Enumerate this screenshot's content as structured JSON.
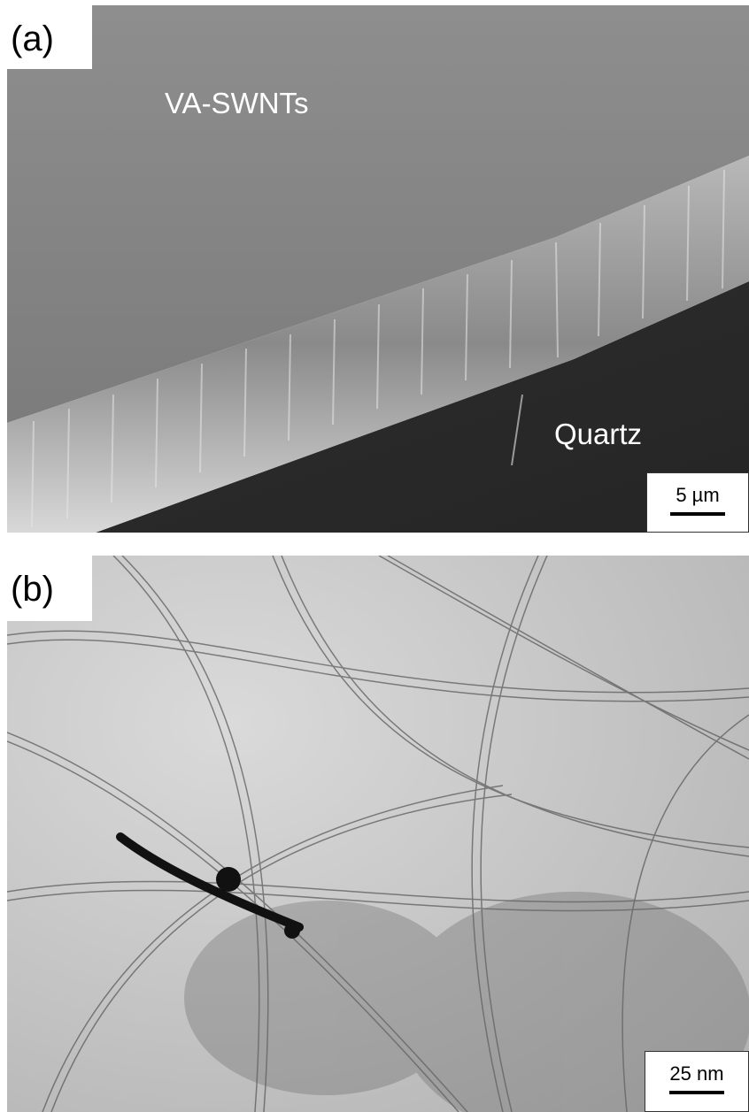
{
  "figure": {
    "panel_a": {
      "label": "(a)",
      "annotation_top": "VA-SWNTs",
      "annotation_bottom": "Quartz",
      "scale_bar": "5 µm"
    },
    "panel_b": {
      "label": "(b)",
      "scale_bar": "25 nm"
    }
  },
  "colors": {
    "sem_surface": "#8a8a8a",
    "sem_substrate": "#2a2a2a",
    "tem_background": "#cfcfcf"
  }
}
